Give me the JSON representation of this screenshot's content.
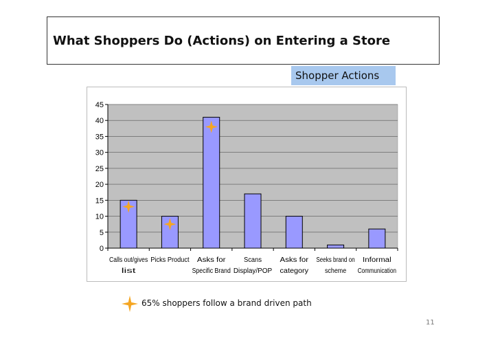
{
  "slide": {
    "title": "What Shoppers Do (Actions) on Entering a Store",
    "badge_label": "Shopper Actions",
    "legend_label": "65% shoppers follow a brand driven path",
    "page_number": "11"
  },
  "colors": {
    "bar_fill": "#9999ff",
    "bar_stroke": "#000000",
    "plot_bg": "#c0c0c0",
    "marker": "#f5a623",
    "badge_bg": "#a8c8ee"
  },
  "chart_data": {
    "type": "bar",
    "title": "",
    "xlabel": "",
    "ylabel": "",
    "ylim": [
      0,
      45
    ],
    "yticks": [
      0,
      5,
      10,
      15,
      20,
      25,
      30,
      35,
      40,
      45
    ],
    "grid": true,
    "categories": [
      [
        "Calls out/gives",
        "list"
      ],
      [
        "Picks Product"
      ],
      [
        "Asks for",
        "Specific Brand"
      ],
      [
        "Scans",
        "Display/POP"
      ],
      [
        "Asks for",
        "category"
      ],
      [
        "Seeks brand on",
        "scheme"
      ],
      [
        "Informal",
        "Communication"
      ]
    ],
    "values": [
      15,
      10,
      41,
      17,
      10,
      1,
      6
    ],
    "markers": [
      {
        "category_index": 0,
        "y": 13
      },
      {
        "category_index": 1,
        "y": 7.5
      },
      {
        "category_index": 2,
        "y": 38
      }
    ]
  }
}
